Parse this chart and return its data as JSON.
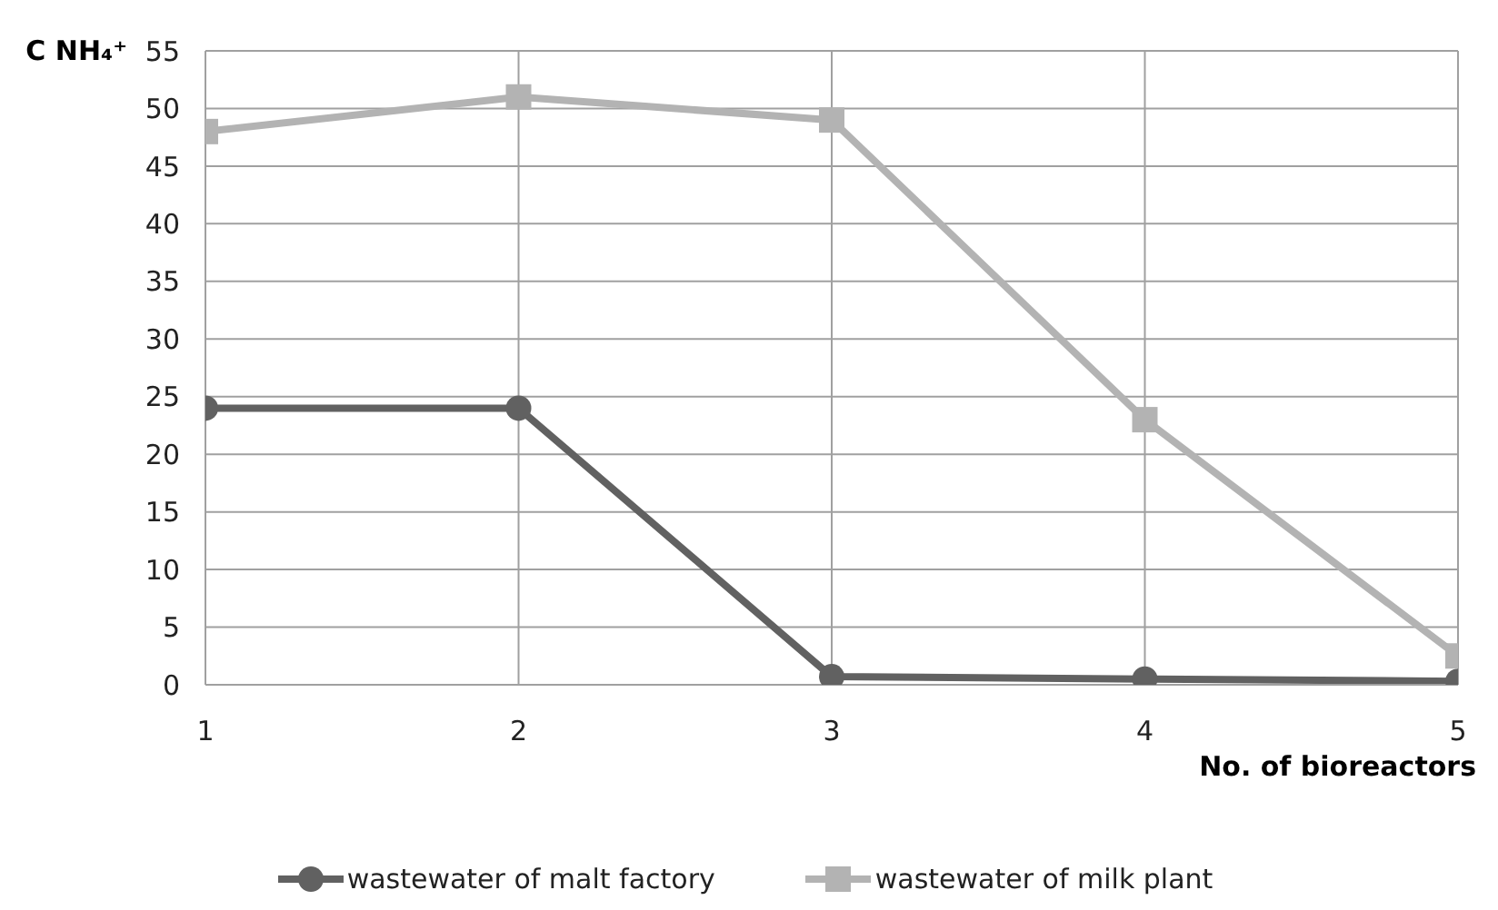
{
  "chart_data": {
    "type": "line",
    "xlabel": "No. of bioreactors",
    "ylabel": "C NH₄⁺",
    "x": [
      1,
      2,
      3,
      4,
      5
    ],
    "series": [
      {
        "name": "wastewater of malt factory",
        "color": "#616161",
        "marker": "circle",
        "values": [
          24,
          24,
          0.7,
          0.5,
          0.3
        ]
      },
      {
        "name": "wastewater of milk plant",
        "color": "#b3b3b3",
        "marker": "square",
        "values": [
          48,
          51,
          49,
          23,
          2.5
        ]
      }
    ],
    "xlim": [
      1,
      5
    ],
    "xticks": [
      1,
      2,
      3,
      4,
      5
    ],
    "ylim": [
      0,
      55
    ],
    "yticks": [
      0,
      5,
      10,
      15,
      20,
      25,
      30,
      35,
      40,
      45,
      50,
      55
    ],
    "grid": true,
    "legend": "bottom",
    "line_style": "solid"
  }
}
